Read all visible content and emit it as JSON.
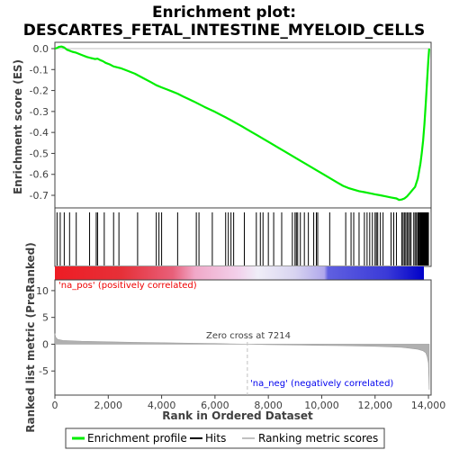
{
  "title_line1": "Enrichment plot:",
  "title_line2": "DESCARTES_FETAL_INTESTINE_MYELOID_CELLS",
  "colors": {
    "profile": "#00ee00",
    "hits": "#000000",
    "metric": "#b0b0b0",
    "pos_text": "#ee0000",
    "neg_text": "#0000ee",
    "zero_line": "#c0c0c0"
  },
  "legend": {
    "items": [
      {
        "label": "Enrichment profile",
        "color": "#00ee00",
        "icon": "green-line-icon"
      },
      {
        "label": "Hits",
        "color": "#000000",
        "icon": "black-line-icon"
      },
      {
        "label": "Ranking metric scores",
        "color": "#c0c0c0",
        "icon": "gray-line-icon"
      }
    ]
  },
  "chart_data": {
    "type": "line",
    "title": "Enrichment plot: DESCARTES_FETAL_INTESTINE_MYELOID_CELLS",
    "xlabel": "Rank in Ordered Dataset",
    "xlim": [
      0,
      14100
    ],
    "xticks": [
      0,
      2000,
      4000,
      6000,
      8000,
      10000,
      12000,
      14000
    ],
    "xtick_labels": [
      "0",
      "2,000",
      "4,000",
      "6,000",
      "8,000",
      "10,000",
      "12,000",
      "14,000"
    ],
    "es_panel": {
      "ylabel": "Enrichment score (ES)",
      "ylim": [
        -0.76,
        0.03
      ],
      "yticks": [
        0.0,
        -0.1,
        -0.2,
        -0.3,
        -0.4,
        -0.5,
        -0.6,
        -0.7
      ],
      "ytick_labels": [
        "0.0",
        "-0.1",
        "-0.2",
        "-0.3",
        "-0.4",
        "-0.5",
        "-0.6",
        "-0.7"
      ],
      "series": [
        {
          "x": [
            0,
            80,
            150,
            250,
            350,
            450,
            550,
            650,
            800,
            1000,
            1200,
            1350,
            1500,
            1600,
            1700,
            1800,
            1900,
            2050,
            2200,
            2350,
            2500,
            2700,
            3000,
            3300,
            3600,
            3800,
            4000,
            4200,
            4400,
            4600,
            4800,
            5000,
            5200,
            5400,
            5600,
            5800,
            6000,
            6200,
            6400,
            6600,
            6800,
            7000,
            7200,
            7400,
            7600,
            7800,
            8000,
            8200,
            8400,
            8600,
            8800,
            9000,
            9200,
            9400,
            9600,
            9800,
            10000,
            10200,
            10400,
            10600,
            10800,
            11000,
            11200,
            11400,
            11600,
            11800,
            12000,
            12200,
            12400,
            12600,
            12800,
            12900,
            13000,
            13100,
            13200,
            13300,
            13400,
            13500,
            13600,
            13700,
            13750,
            13800,
            13850,
            13900,
            13950,
            14000,
            14030
          ],
          "y": [
            0.0,
            0.003,
            0.008,
            0.01,
            0.005,
            -0.005,
            -0.01,
            -0.015,
            -0.02,
            -0.03,
            -0.04,
            -0.045,
            -0.05,
            -0.048,
            -0.055,
            -0.06,
            -0.068,
            -0.075,
            -0.085,
            -0.09,
            -0.095,
            -0.105,
            -0.12,
            -0.14,
            -0.16,
            -0.175,
            -0.185,
            -0.195,
            -0.205,
            -0.215,
            -0.228,
            -0.24,
            -0.252,
            -0.265,
            -0.278,
            -0.29,
            -0.302,
            -0.315,
            -0.328,
            -0.342,
            -0.356,
            -0.37,
            -0.385,
            -0.4,
            -0.415,
            -0.43,
            -0.445,
            -0.46,
            -0.475,
            -0.49,
            -0.505,
            -0.52,
            -0.535,
            -0.55,
            -0.565,
            -0.58,
            -0.595,
            -0.61,
            -0.625,
            -0.64,
            -0.655,
            -0.665,
            -0.673,
            -0.68,
            -0.685,
            -0.69,
            -0.695,
            -0.7,
            -0.705,
            -0.71,
            -0.715,
            -0.722,
            -0.72,
            -0.715,
            -0.705,
            -0.69,
            -0.675,
            -0.66,
            -0.62,
            -0.55,
            -0.5,
            -0.44,
            -0.36,
            -0.26,
            -0.15,
            -0.05,
            0.0
          ]
        }
      ]
    },
    "hits_panel": {
      "hit_ranks": [
        80,
        200,
        350,
        550,
        800,
        1300,
        1550,
        1600,
        1850,
        2200,
        2400,
        3100,
        3800,
        3900,
        4000,
        4600,
        5300,
        5400,
        5900,
        6400,
        6500,
        6600,
        6700,
        7100,
        7550,
        7700,
        7800,
        8000,
        8200,
        8500,
        8900,
        9000,
        9050,
        9100,
        9200,
        9350,
        9500,
        9700,
        9800,
        9850,
        10300,
        10900,
        11100,
        11200,
        11400,
        11600,
        11700,
        11800,
        11900,
        12000,
        12050,
        12100,
        12200,
        12300,
        12600,
        12700,
        12800,
        13000,
        13050,
        13100,
        13150,
        13200,
        13250,
        13300,
        13350,
        13450,
        13500,
        13550,
        13600,
        13620,
        13650,
        13680,
        13700,
        13720,
        13740,
        13760,
        13780,
        13800,
        13820,
        13840,
        13860,
        13880,
        13900,
        13920,
        13940,
        13960,
        13980,
        14000
      ]
    },
    "metric_panel": {
      "ylabel": "Ranked list metric (PreRanked)",
      "ylim": [
        -9.5,
        12
      ],
      "yticks": [
        10,
        5,
        0,
        -5
      ],
      "ytick_labels": [
        "10",
        "5",
        "0",
        "-5"
      ],
      "x": [
        0,
        30,
        100,
        300,
        1000,
        2000,
        3000,
        4000,
        5000,
        6000,
        7214,
        8000,
        9000,
        10000,
        11000,
        12000,
        12500,
        13000,
        13300,
        13600,
        13800,
        13900,
        13950,
        14000,
        14030
      ],
      "y": [
        2.0,
        1.3,
        0.9,
        0.7,
        0.55,
        0.45,
        0.35,
        0.28,
        0.2,
        0.12,
        0.0,
        -0.08,
        -0.15,
        -0.22,
        -0.3,
        -0.4,
        -0.48,
        -0.6,
        -0.75,
        -0.95,
        -1.25,
        -1.6,
        -2.3,
        -3.5,
        -8.5
      ],
      "pos_label": "'na_pos' (positively correlated)",
      "neg_label": "'na_neg' (negatively correlated)",
      "zero_cross_label": "Zero cross at 7214",
      "zero_cross_rank": 7214
    },
    "legend_position": "bottom"
  }
}
